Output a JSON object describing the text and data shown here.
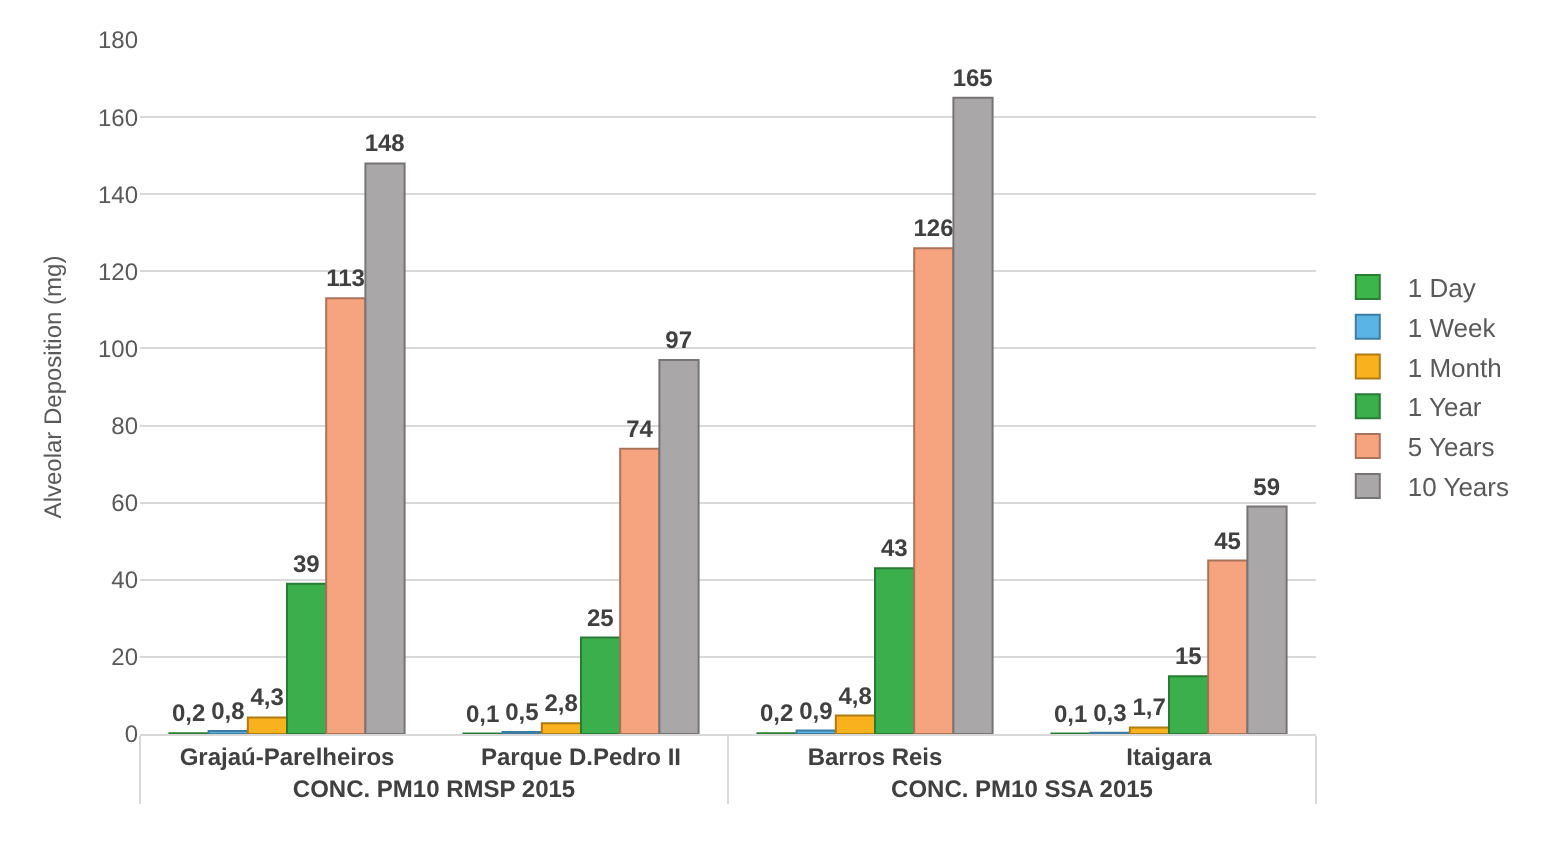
{
  "chart_data": {
    "type": "bar",
    "ylabel": "Alveolar Deposition (mg)",
    "categories": [
      "Grajaú-Parelheiros",
      "Parque D.Pedro II",
      "Barros Reis",
      "Itaigara"
    ],
    "annotations": [
      "CONC. PM10 RMSP 2015",
      "CONC. PM10 SSA 2015"
    ],
    "series": [
      {
        "name": "1 Day",
        "color": "#3cb54a",
        "values": [
          0.2,
          0.1,
          0.2,
          0.1
        ],
        "value_labels": [
          "0,2",
          "0,1",
          "0,2",
          "0,1"
        ]
      },
      {
        "name": "1 Week",
        "color": "#5ab4e5",
        "values": [
          0.8,
          0.5,
          0.9,
          0.3
        ],
        "value_labels": [
          "0,8",
          "0,5",
          "0,9",
          "0,3"
        ]
      },
      {
        "name": "1 Month",
        "color": "#f9b11d",
        "values": [
          4.3,
          2.8,
          4.8,
          1.7
        ],
        "value_labels": [
          "4,3",
          "2,8",
          "4,8",
          "1,7"
        ]
      },
      {
        "name": "1 Year",
        "color": "#3aaf4b",
        "values": [
          39,
          25,
          43,
          15
        ],
        "value_labels": [
          "39",
          "25",
          "43",
          "15"
        ]
      },
      {
        "name": "5 Years",
        "color": "#f5a47f",
        "values": [
          113,
          74,
          126,
          45
        ],
        "value_labels": [
          "113",
          "74",
          "126",
          "45"
        ]
      },
      {
        "name": "10 Years",
        "color": "#a9a7a7",
        "values": [
          148,
          97,
          165,
          59
        ],
        "value_labels": [
          "148",
          "97",
          "165",
          "59"
        ]
      }
    ],
    "ylim": [
      0,
      180
    ],
    "yticks": [
      0,
      20,
      40,
      60,
      80,
      100,
      120,
      140,
      160,
      180
    ],
    "grid": "y",
    "legend": "right"
  }
}
